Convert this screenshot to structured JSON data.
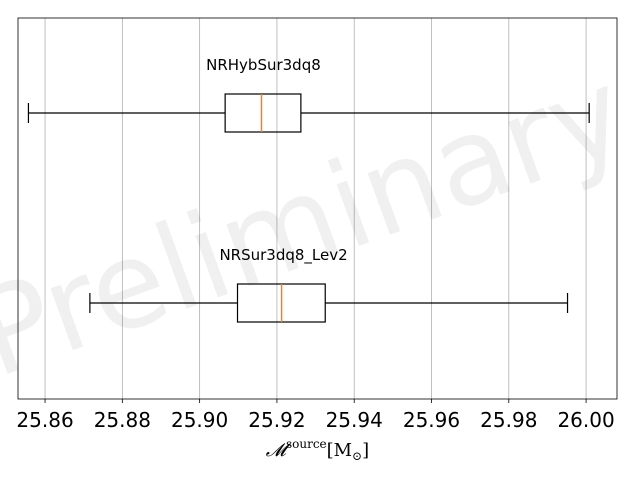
{
  "chart_data": {
    "type": "boxplot",
    "orientation": "horizontal",
    "title": "",
    "xlabel": {
      "symbol": "𝓜",
      "superscript": "source",
      "unit": "[M",
      "unit_subscript": "⊙",
      "unit_close": "]"
    },
    "xlim": [
      25.853,
      26.008
    ],
    "xticks": [
      25.86,
      25.88,
      25.9,
      25.92,
      25.94,
      25.96,
      25.98,
      26.0
    ],
    "xtick_labels": [
      "25.86",
      "25.88",
      "25.90",
      "25.92",
      "25.94",
      "25.96",
      "25.98",
      "26.00"
    ],
    "grid": "vertical",
    "series": [
      {
        "name": "NRHybSur3dq8",
        "whisker_low": 25.8557,
        "q1": 25.9066,
        "median": 25.916,
        "q3": 25.9262,
        "whisker_high": 26.0008
      },
      {
        "name": "NRSur3dq8_Lev2",
        "whisker_low": 25.8716,
        "q1": 25.9098,
        "median": 25.9212,
        "q3": 25.9325,
        "whisker_high": 25.9952
      }
    ],
    "watermark": "Preliminary",
    "colors": {
      "median": "#ff7f0e",
      "box": "#000000",
      "grid": "#b0b0b0"
    }
  }
}
